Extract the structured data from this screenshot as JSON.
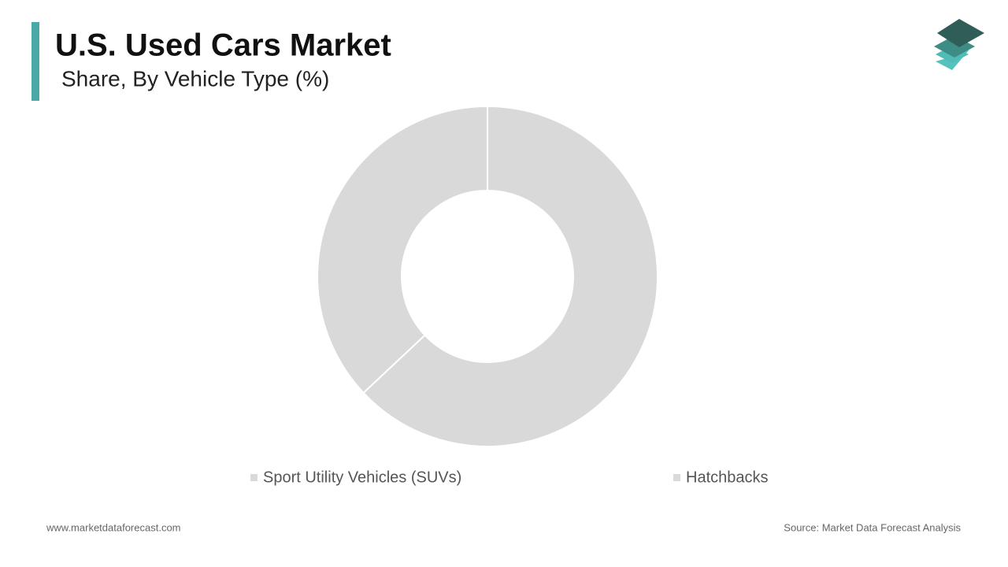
{
  "chart_data": {
    "type": "pie",
    "title": "U.S. Used Cars Market",
    "subtitle": "Share, By Vehicle Type (%)",
    "categories": [
      "Sport Utility Vehicles (SUVs)",
      "Hatchbacks"
    ],
    "values": [
      63,
      37
    ],
    "colors": [
      "#d9d9d9",
      "#d9d9d9"
    ],
    "donut": true,
    "website": "www.marketdataforecast.com",
    "source": "Source: Market Data Forecast Analysis"
  }
}
